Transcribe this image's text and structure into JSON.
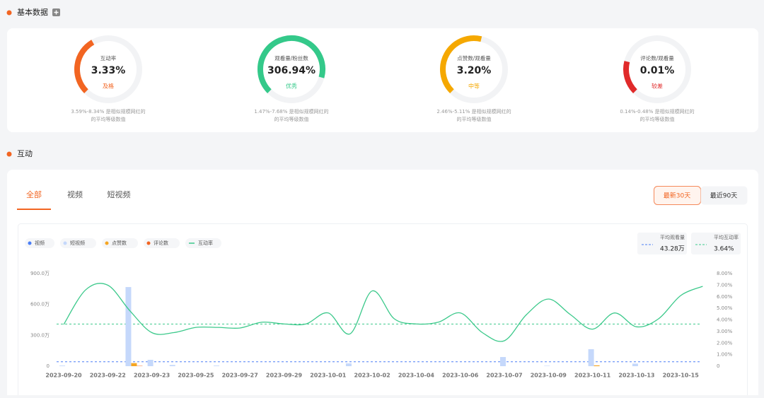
{
  "sections": {
    "basic": "基本数据",
    "interaction": "互动"
  },
  "gauges": [
    {
      "label": "互动率",
      "value": "3.33%",
      "grade": "及格",
      "color": "#f26522",
      "arc_fraction": 0.39,
      "note": [
        "3.59%-8.34% 是相似规模网红的",
        "的平均等级数值"
      ]
    },
    {
      "label": "观看量/粉丝数",
      "value": "306.94%",
      "grade": "优秀",
      "color": "#34c98a",
      "arc_fraction": 0.89,
      "note": [
        "1.47%-7.68% 是相似规模网红的",
        "的平均等级数值"
      ]
    },
    {
      "label": "点赞数/观看量",
      "value": "3.20%",
      "grade": "中等",
      "color": "#f5a800",
      "arc_fraction": 0.55,
      "note": [
        "2.46%-5.11% 是相似规模网红的",
        "的平均等级数值"
      ]
    },
    {
      "label": "评论数/观看量",
      "value": "0.01%",
      "grade": "较差",
      "color": "#e02a2a",
      "arc_fraction": 0.22,
      "note": [
        "0.14%-0.48% 是相似规模网红的",
        "的平均等级数值"
      ]
    }
  ],
  "tabs": [
    "全部",
    "视频",
    "短视频"
  ],
  "range_buttons": [
    "最新30天",
    "最近90天"
  ],
  "chart_data": {
    "type": "bar_line",
    "categories": [
      "2023-09-20",
      null,
      "2023-09-22",
      null,
      "2023-09-23",
      null,
      "2023-09-25",
      null,
      "2023-09-27",
      null,
      "2023-09-29",
      null,
      "2023-10-01",
      null,
      "2023-10-02",
      null,
      "2023-10-04",
      null,
      "2023-10-06",
      null,
      "2023-10-07",
      null,
      "2023-10-09",
      null,
      "2023-10-11",
      null,
      "2023-10-13",
      null,
      "2023-10-15",
      null
    ],
    "series": [
      {
        "name": "视频",
        "type": "bar",
        "color": "#4a7ef5",
        "values": [
          0,
          0,
          0,
          0,
          0,
          0,
          0,
          0,
          0,
          0,
          0,
          0,
          0,
          0,
          0,
          0,
          0,
          0,
          0,
          0,
          0,
          0,
          0,
          0,
          0,
          0,
          0,
          0,
          0,
          0
        ]
      },
      {
        "name": "短视频",
        "type": "bar",
        "color": "#c5d8fb",
        "values": [
          6,
          0,
          0,
          769,
          62,
          12,
          0,
          6,
          0,
          0,
          0,
          0,
          0,
          27,
          0,
          0,
          0,
          0,
          0,
          0,
          89,
          0,
          4,
          0,
          165,
          0,
          25,
          0,
          0,
          0
        ]
      },
      {
        "name": "点赞数",
        "type": "bar",
        "color": "#f5a623",
        "values": [
          0,
          0,
          0,
          30,
          0,
          0,
          0,
          0,
          0,
          0,
          0,
          0,
          0,
          0,
          0,
          0,
          0,
          0,
          0,
          0,
          0,
          0,
          0,
          0,
          8,
          0,
          0,
          0,
          0,
          0
        ]
      },
      {
        "name": "评论数",
        "type": "bar",
        "color": "#f26522",
        "values": [
          0,
          0,
          0,
          3,
          0,
          0,
          0,
          0,
          0,
          0,
          0,
          0,
          0,
          0,
          0,
          0,
          0,
          0,
          0,
          0,
          0,
          0,
          0,
          0,
          0,
          0,
          0,
          0,
          0,
          0
        ]
      },
      {
        "name": "互动率",
        "type": "line",
        "axis": "y2",
        "color": "#3cc98b",
        "values": [
          3.6,
          6.6,
          7.0,
          4.8,
          2.9,
          2.9,
          3.35,
          3.35,
          3.3,
          3.8,
          3.65,
          3.65,
          4.6,
          2.8,
          6.5,
          4.1,
          3.65,
          3.8,
          4.6,
          2.9,
          2.2,
          4.45,
          5.8,
          4.45,
          3.2,
          4.6,
          3.4,
          4.1,
          6.1,
          6.9
        ]
      }
    ],
    "averages": [
      {
        "name": "平均观看量",
        "value": 43.28,
        "value_label": "43.28万",
        "color": "#4a7ef5",
        "axis": "y"
      },
      {
        "name": "平均互动率",
        "value": 3.64,
        "value_label": "3.64%",
        "color": "#3cc98b",
        "axis": "y2"
      }
    ],
    "ylim": [
      0,
      900
    ],
    "yticks": [
      0,
      {
        "value": 300,
        "label": "300.0万"
      },
      {
        "value": 600,
        "label": "600.0万"
      },
      {
        "value": 900,
        "label": "900.0万"
      }
    ],
    "y2lim": [
      0,
      8
    ],
    "y2ticks": [
      0,
      {
        "value": 1,
        "label": "1.00%"
      },
      {
        "value": 2,
        "label": "2.00%"
      },
      {
        "value": 3,
        "label": "3.00%"
      },
      {
        "value": 4,
        "label": "4.00%"
      },
      {
        "value": 5,
        "label": "5.00%"
      },
      {
        "value": 6,
        "label": "6.00%"
      },
      {
        "value": 7,
        "label": "7.00%"
      },
      {
        "value": 8,
        "label": "8.00%"
      }
    ]
  }
}
